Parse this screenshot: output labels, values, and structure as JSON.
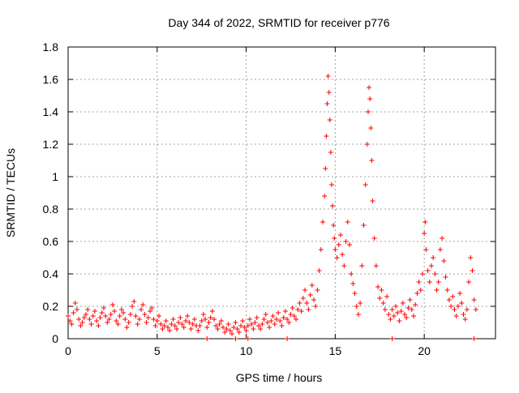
{
  "chart_data": {
    "type": "scatter",
    "title": "Day 344 of 2022, SRMTID for receiver p776",
    "xlabel": "GPS time / hours",
    "ylabel": "SRMTID / TECUs",
    "xlim": [
      0,
      24
    ],
    "ylim": [
      0,
      1.8
    ],
    "grid": true,
    "marker": "+",
    "series_color": "#ff0000",
    "x_ticks": [
      {
        "value": 0,
        "label": "0"
      },
      {
        "value": 5,
        "label": "5"
      },
      {
        "value": 10,
        "label": "10"
      },
      {
        "value": 15,
        "label": "15"
      },
      {
        "value": 20,
        "label": "20"
      }
    ],
    "y_ticks": [
      {
        "value": 0,
        "label": "0"
      },
      {
        "value": 0.2,
        "label": "0.2"
      },
      {
        "value": 0.4,
        "label": "0.4"
      },
      {
        "value": 0.6,
        "label": "0.6"
      },
      {
        "value": 0.8,
        "label": "0.8"
      },
      {
        "value": 1.0,
        "label": "1"
      },
      {
        "value": 1.2,
        "label": "1.2"
      },
      {
        "value": 1.4,
        "label": "1.4"
      },
      {
        "value": 1.6,
        "label": "1.6"
      },
      {
        "value": 1.8,
        "label": "1.8"
      }
    ],
    "series": [
      {
        "name": "p776",
        "points": [
          [
            0.0,
            0.14
          ],
          [
            0.1,
            0.11
          ],
          [
            0.2,
            0.09
          ],
          [
            0.3,
            0.16
          ],
          [
            0.4,
            0.22
          ],
          [
            0.5,
            0.18
          ],
          [
            0.6,
            0.12
          ],
          [
            0.7,
            0.08
          ],
          [
            0.8,
            0.1
          ],
          [
            0.9,
            0.13
          ],
          [
            1.0,
            0.15
          ],
          [
            1.1,
            0.18
          ],
          [
            1.2,
            0.12
          ],
          [
            1.3,
            0.09
          ],
          [
            1.4,
            0.14
          ],
          [
            1.5,
            0.17
          ],
          [
            1.6,
            0.11
          ],
          [
            1.7,
            0.08
          ],
          [
            1.8,
            0.13
          ],
          [
            1.9,
            0.16
          ],
          [
            2.0,
            0.19
          ],
          [
            2.1,
            0.14
          ],
          [
            2.2,
            0.1
          ],
          [
            2.3,
            0.12
          ],
          [
            2.4,
            0.15
          ],
          [
            2.5,
            0.21
          ],
          [
            2.6,
            0.17
          ],
          [
            2.7,
            0.11
          ],
          [
            2.8,
            0.09
          ],
          [
            2.9,
            0.14
          ],
          [
            3.0,
            0.18
          ],
          [
            3.1,
            0.16
          ],
          [
            3.2,
            0.12
          ],
          [
            3.3,
            0.07
          ],
          [
            3.4,
            0.1
          ],
          [
            3.5,
            0.15
          ],
          [
            3.6,
            0.2
          ],
          [
            3.7,
            0.23
          ],
          [
            3.8,
            0.14
          ],
          [
            3.9,
            0.09
          ],
          [
            4.0,
            0.12
          ],
          [
            4.1,
            0.18
          ],
          [
            4.2,
            0.21
          ],
          [
            4.3,
            0.15
          ],
          [
            4.4,
            0.1
          ],
          [
            4.5,
            0.13
          ],
          [
            4.6,
            0.17
          ],
          [
            4.7,
            0.19
          ],
          [
            4.8,
            0.12
          ],
          [
            4.9,
            0.08
          ],
          [
            5.0,
            0.11
          ],
          [
            5.1,
            0.14
          ],
          [
            5.2,
            0.09
          ],
          [
            5.3,
            0.06
          ],
          [
            5.4,
            0.08
          ],
          [
            5.5,
            0.11
          ],
          [
            5.6,
            0.07
          ],
          [
            5.7,
            0.05
          ],
          [
            5.8,
            0.09
          ],
          [
            5.9,
            0.12
          ],
          [
            6.0,
            0.08
          ],
          [
            6.1,
            0.06
          ],
          [
            6.2,
            0.1
          ],
          [
            6.3,
            0.13
          ],
          [
            6.4,
            0.09
          ],
          [
            6.5,
            0.07
          ],
          [
            6.6,
            0.11
          ],
          [
            6.7,
            0.14
          ],
          [
            6.8,
            0.1
          ],
          [
            6.9,
            0.06
          ],
          [
            7.0,
            0.09
          ],
          [
            7.1,
            0.12
          ],
          [
            7.2,
            0.08
          ],
          [
            7.3,
            0.05
          ],
          [
            7.4,
            0.08
          ],
          [
            7.5,
            0.11
          ],
          [
            7.6,
            0.15
          ],
          [
            7.7,
            0.12
          ],
          [
            7.8,
            0.07
          ],
          [
            7.9,
            0.1
          ],
          [
            8.0,
            0.13
          ],
          [
            8.1,
            0.17
          ],
          [
            8.2,
            0.12
          ],
          [
            8.3,
            0.08
          ],
          [
            8.4,
            0.06
          ],
          [
            8.5,
            0.09
          ],
          [
            8.6,
            0.11
          ],
          [
            8.7,
            0.07
          ],
          [
            8.8,
            0.04
          ],
          [
            8.9,
            0.06
          ],
          [
            9.0,
            0.09
          ],
          [
            9.1,
            0.05
          ],
          [
            9.2,
            0.03
          ],
          [
            9.3,
            0.07
          ],
          [
            9.4,
            0.1
          ],
          [
            9.5,
            0.06
          ],
          [
            9.6,
            0.04
          ],
          [
            9.7,
            0.08
          ],
          [
            9.8,
            0.11
          ],
          [
            9.9,
            0.07
          ],
          [
            10.0,
            0.05
          ],
          [
            10.1,
            0.08
          ],
          [
            10.2,
            0.12
          ],
          [
            10.3,
            0.09
          ],
          [
            10.4,
            0.06
          ],
          [
            10.5,
            0.1
          ],
          [
            10.6,
            0.13
          ],
          [
            10.7,
            0.08
          ],
          [
            10.8,
            0.06
          ],
          [
            10.9,
            0.09
          ],
          [
            11.0,
            0.12
          ],
          [
            11.1,
            0.15
          ],
          [
            11.2,
            0.1
          ],
          [
            11.3,
            0.07
          ],
          [
            11.4,
            0.11
          ],
          [
            11.5,
            0.14
          ],
          [
            11.6,
            0.09
          ],
          [
            11.7,
            0.12
          ],
          [
            11.8,
            0.16
          ],
          [
            11.9,
            0.11
          ],
          [
            12.0,
            0.08
          ],
          [
            12.1,
            0.13
          ],
          [
            12.2,
            0.17
          ],
          [
            12.3,
            0.12
          ],
          [
            12.4,
            0.1
          ],
          [
            12.5,
            0.15
          ],
          [
            12.6,
            0.19
          ],
          [
            12.7,
            0.14
          ],
          [
            12.8,
            0.12
          ],
          [
            12.9,
            0.18
          ],
          [
            13.0,
            0.22
          ],
          [
            13.1,
            0.17
          ],
          [
            13.2,
            0.25
          ],
          [
            13.3,
            0.3
          ],
          [
            13.4,
            0.22
          ],
          [
            13.5,
            0.18
          ],
          [
            13.6,
            0.27
          ],
          [
            13.7,
            0.33
          ],
          [
            13.8,
            0.24
          ],
          [
            13.9,
            0.2
          ],
          [
            14.0,
            0.3
          ],
          [
            14.1,
            0.42
          ],
          [
            14.2,
            0.55
          ],
          [
            14.3,
            0.72
          ],
          [
            14.4,
            0.88
          ],
          [
            14.45,
            1.05
          ],
          [
            14.5,
            1.25
          ],
          [
            14.55,
            1.45
          ],
          [
            14.6,
            1.62
          ],
          [
            14.65,
            1.52
          ],
          [
            14.7,
            1.35
          ],
          [
            14.75,
            1.15
          ],
          [
            14.8,
            0.95
          ],
          [
            14.85,
            0.82
          ],
          [
            14.9,
            0.7
          ],
          [
            14.95,
            0.62
          ],
          [
            15.0,
            0.55
          ],
          [
            15.1,
            0.5
          ],
          [
            15.2,
            0.58
          ],
          [
            15.3,
            0.64
          ],
          [
            15.4,
            0.52
          ],
          [
            15.5,
            0.45
          ],
          [
            15.6,
            0.6
          ],
          [
            15.7,
            0.72
          ],
          [
            15.8,
            0.58
          ],
          [
            15.9,
            0.4
          ],
          [
            16.0,
            0.34
          ],
          [
            16.1,
            0.28
          ],
          [
            16.2,
            0.2
          ],
          [
            16.3,
            0.15
          ],
          [
            16.4,
            0.22
          ],
          [
            16.5,
            0.45
          ],
          [
            16.6,
            0.7
          ],
          [
            16.7,
            0.95
          ],
          [
            16.8,
            1.2
          ],
          [
            16.85,
            1.4
          ],
          [
            16.9,
            1.55
          ],
          [
            16.95,
            1.48
          ],
          [
            17.0,
            1.3
          ],
          [
            17.05,
            1.1
          ],
          [
            17.1,
            0.85
          ],
          [
            17.2,
            0.62
          ],
          [
            17.3,
            0.45
          ],
          [
            17.4,
            0.32
          ],
          [
            17.5,
            0.25
          ],
          [
            17.6,
            0.3
          ],
          [
            17.7,
            0.22
          ],
          [
            17.8,
            0.18
          ],
          [
            17.9,
            0.26
          ],
          [
            18.0,
            0.15
          ],
          [
            18.1,
            0.12
          ],
          [
            18.2,
            0.18
          ],
          [
            18.3,
            0.14
          ],
          [
            18.4,
            0.2
          ],
          [
            18.5,
            0.16
          ],
          [
            18.6,
            0.11
          ],
          [
            18.7,
            0.17
          ],
          [
            18.8,
            0.22
          ],
          [
            18.9,
            0.15
          ],
          [
            19.0,
            0.13
          ],
          [
            19.1,
            0.19
          ],
          [
            19.2,
            0.24
          ],
          [
            19.3,
            0.18
          ],
          [
            19.4,
            0.14
          ],
          [
            19.5,
            0.21
          ],
          [
            19.6,
            0.28
          ],
          [
            19.7,
            0.35
          ],
          [
            19.8,
            0.3
          ],
          [
            19.9,
            0.4
          ],
          [
            20.0,
            0.65
          ],
          [
            20.05,
            0.72
          ],
          [
            20.1,
            0.55
          ],
          [
            20.2,
            0.42
          ],
          [
            20.3,
            0.35
          ],
          [
            20.4,
            0.45
          ],
          [
            20.5,
            0.5
          ],
          [
            20.6,
            0.4
          ],
          [
            20.7,
            0.3
          ],
          [
            20.8,
            0.35
          ],
          [
            20.9,
            0.55
          ],
          [
            21.0,
            0.62
          ],
          [
            21.1,
            0.48
          ],
          [
            21.2,
            0.38
          ],
          [
            21.3,
            0.3
          ],
          [
            21.4,
            0.24
          ],
          [
            21.5,
            0.2
          ],
          [
            21.6,
            0.26
          ],
          [
            21.7,
            0.18
          ],
          [
            21.8,
            0.14
          ],
          [
            21.9,
            0.2
          ],
          [
            22.0,
            0.28
          ],
          [
            22.1,
            0.22
          ],
          [
            22.2,
            0.15
          ],
          [
            22.3,
            0.12
          ],
          [
            22.4,
            0.18
          ],
          [
            22.5,
            0.35
          ],
          [
            22.6,
            0.5
          ],
          [
            22.7,
            0.42
          ],
          [
            22.8,
            0.24
          ],
          [
            22.9,
            0.18
          ],
          [
            7.8,
            0.0
          ],
          [
            9.4,
            0.0
          ],
          [
            10.1,
            0.0
          ],
          [
            12.3,
            0.0
          ],
          [
            18.2,
            0.0
          ],
          [
            22.8,
            0.0
          ]
        ]
      }
    ]
  }
}
